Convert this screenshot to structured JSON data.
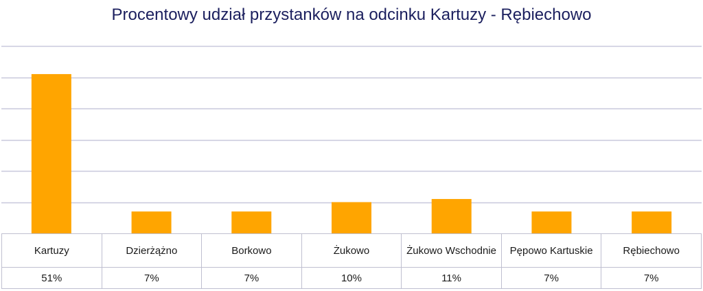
{
  "chart_data": {
    "type": "bar",
    "title": "Procentowy udział przystanków na odcinku Kartuzy - Rębiechowo",
    "categories": [
      "Kartuzy",
      "Dzierżążno",
      "Borkowo",
      "Żukowo",
      "Żukowo Wschodnie",
      "Pępowo Kartuskie",
      "Rębiechowo"
    ],
    "values": [
      51,
      7,
      7,
      10,
      11,
      7,
      7
    ],
    "value_labels": [
      "51%",
      "7%",
      "7%",
      "10%",
      "11%",
      "7%",
      "7%"
    ],
    "ylim": [
      0,
      60
    ],
    "grid": true,
    "bar_color": "#FFA500",
    "grid_color": "#C8C8DC",
    "title_color": "#1B1F5E"
  }
}
